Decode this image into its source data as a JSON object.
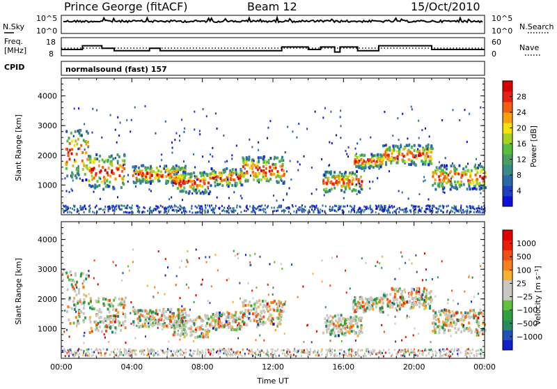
{
  "header": {
    "station": "Prince George (fitACF)",
    "beam": "Beam 12",
    "date": "15/Oct/2010"
  },
  "noise_panel": {
    "left_label": "N.Sky",
    "right_label": "N.Search",
    "left_ticks": [
      "10^5",
      "10^0"
    ],
    "right_ticks": [
      "10^5",
      "10^0"
    ]
  },
  "freq_panel": {
    "left_label_line1": "Freq.",
    "left_label_line2": "[MHz]",
    "right_label": "Nave",
    "left_ticks": [
      "18",
      "8"
    ],
    "right_ticks": [
      "60",
      "0"
    ],
    "freq_mhz": {
      "t": [
        0,
        1.2,
        1.2,
        2.3,
        2.3,
        3.0,
        3.0,
        5.0,
        5.0,
        5.6,
        5.6,
        12.5,
        12.5,
        14.0,
        14.0,
        14.7,
        14.7,
        15.5,
        15.5,
        15.8,
        15.8,
        16.8,
        16.8,
        18.0,
        18.0,
        21.0,
        21.0,
        24.0
      ],
      "v": [
        13,
        13,
        16,
        16,
        14,
        14,
        12,
        12,
        14,
        14,
        12,
        12,
        15,
        15,
        13,
        13,
        15,
        15,
        11,
        11,
        15,
        15,
        12,
        12,
        16,
        16,
        13,
        13
      ]
    }
  },
  "cpid": {
    "label": "CPID",
    "text": "normalsound (fast) 157"
  },
  "chart_data": [
    {
      "type": "heatmap",
      "title": "Power",
      "ylabel": "Slant Range [km]",
      "xlabel": "Time UT",
      "ylim": [
        0,
        4600
      ],
      "xlim": [
        0,
        24
      ],
      "x_ticks": [
        "00:00",
        "04:00",
        "08:00",
        "12:00",
        "16:00",
        "20:00",
        "00:00"
      ],
      "y_ticks": [
        1000,
        2000,
        3000,
        4000
      ],
      "colorbar": {
        "label": "Power [dB]",
        "ticks": [
          "28",
          "24",
          "20",
          "16",
          "12",
          "8",
          "4"
        ],
        "colors": [
          "#1010d8",
          "#2040c0",
          "#2a6aa8",
          "#3a8a88",
          "#4aa060",
          "#58c040",
          "#a8d020",
          "#f8e010",
          "#f8a010",
          "#f06010",
          "#e82010",
          "#d80000"
        ]
      },
      "bands": [
        {
          "t0": 0.2,
          "t1": 1.5,
          "r0": 1200,
          "r1": 3000
        },
        {
          "t0": 1.5,
          "t1": 3.6,
          "r0": 900,
          "r1": 2100
        },
        {
          "t0": 4.0,
          "t1": 7.0,
          "r0": 1100,
          "r1": 1700
        },
        {
          "t0": 6.3,
          "t1": 8.4,
          "r0": 750,
          "r1": 1500
        },
        {
          "t0": 8.4,
          "t1": 10.2,
          "r0": 1000,
          "r1": 1600
        },
        {
          "t0": 10.2,
          "t1": 12.6,
          "r0": 1100,
          "r1": 2000
        },
        {
          "t0": 14.8,
          "t1": 17.0,
          "r0": 800,
          "r1": 1500
        },
        {
          "t0": 16.5,
          "t1": 18.2,
          "r0": 1600,
          "r1": 2100
        },
        {
          "t0": 18.2,
          "t1": 21.0,
          "r0": 1700,
          "r1": 2400
        },
        {
          "t0": 21.0,
          "t1": 24.0,
          "r0": 900,
          "r1": 1700
        }
      ]
    },
    {
      "type": "heatmap",
      "title": "Velocity",
      "ylabel": "Slant Range [km]",
      "xlabel": "Time UT",
      "ylim": [
        0,
        4600
      ],
      "xlim": [
        0,
        24
      ],
      "x_ticks": [
        "00:00",
        "04:00",
        "08:00",
        "12:00",
        "16:00",
        "20:00",
        "00:00"
      ],
      "y_ticks": [
        1000,
        2000,
        3000,
        4000
      ],
      "colorbar": {
        "label": "Velocity [m s⁻¹]",
        "ticks": [
          "1000",
          "500",
          "100",
          "25",
          "−25",
          "−100",
          "−500",
          "−1000"
        ],
        "colors": [
          "#1020c8",
          "#2050b8",
          "#288a60",
          "#30a040",
          "#60c040",
          "#c8c8c0",
          "#c8c8c0",
          "#f8b030",
          "#f88020",
          "#f05010",
          "#e82000",
          "#e00000"
        ]
      },
      "bands": [
        {
          "t0": 0.2,
          "t1": 1.5,
          "r0": 1200,
          "r1": 3000
        },
        {
          "t0": 1.5,
          "t1": 3.6,
          "r0": 900,
          "r1": 2100
        },
        {
          "t0": 4.0,
          "t1": 7.0,
          "r0": 1100,
          "r1": 1700
        },
        {
          "t0": 6.3,
          "t1": 8.4,
          "r0": 750,
          "r1": 1500
        },
        {
          "t0": 8.4,
          "t1": 10.2,
          "r0": 1000,
          "r1": 1600
        },
        {
          "t0": 10.2,
          "t1": 12.6,
          "r0": 1100,
          "r1": 2000
        },
        {
          "t0": 14.8,
          "t1": 17.0,
          "r0": 800,
          "r1": 1500
        },
        {
          "t0": 16.5,
          "t1": 18.2,
          "r0": 1600,
          "r1": 2100
        },
        {
          "t0": 18.2,
          "t1": 21.0,
          "r0": 1700,
          "r1": 2400
        },
        {
          "t0": 21.0,
          "t1": 24.0,
          "r0": 900,
          "r1": 1700
        }
      ]
    }
  ]
}
